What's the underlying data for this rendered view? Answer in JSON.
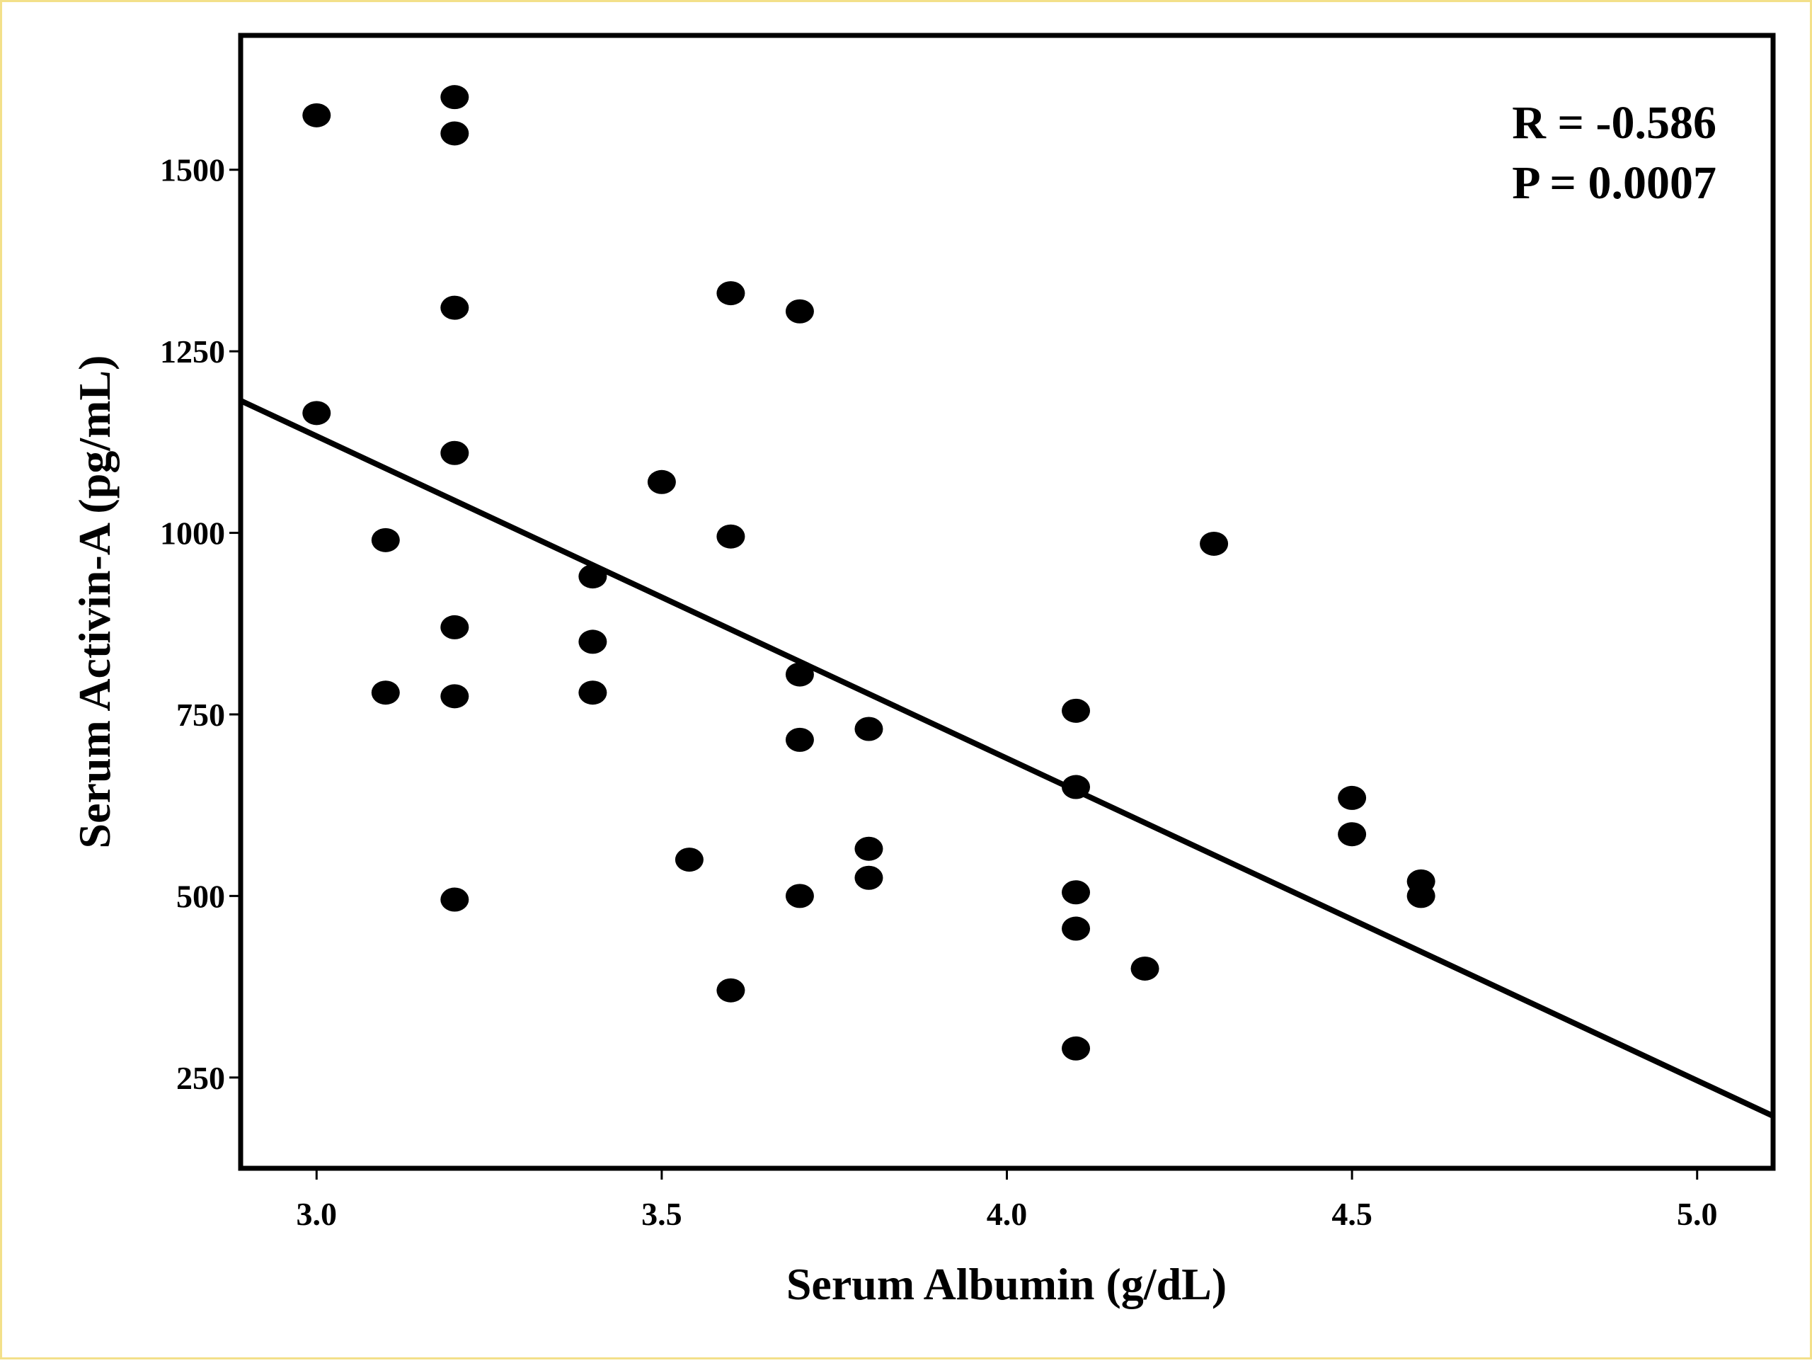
{
  "chart_data": {
    "type": "scatter",
    "title": "",
    "xlabel": "Serum Albumin (g/dL)",
    "ylabel": "Serum Activin-A (pg/mL)",
    "xlim": [
      2.89,
      5.11
    ],
    "ylim": [
      125,
      1685
    ],
    "x_ticks": [
      3.0,
      3.5,
      4.0,
      4.5,
      5.0
    ],
    "x_tick_labels": [
      "3.0",
      "3.5",
      "4.0",
      "4.5",
      "5.0"
    ],
    "y_ticks": [
      250,
      500,
      750,
      1000,
      1250,
      1500
    ],
    "y_tick_labels": [
      "250",
      "500",
      "750",
      "1000",
      "1250",
      "1500"
    ],
    "grid": false,
    "points": [
      {
        "x": 3.0,
        "y": 1575
      },
      {
        "x": 3.0,
        "y": 1165
      },
      {
        "x": 3.1,
        "y": 990
      },
      {
        "x": 3.1,
        "y": 780
      },
      {
        "x": 3.2,
        "y": 1600
      },
      {
        "x": 3.2,
        "y": 1550
      },
      {
        "x": 3.2,
        "y": 1310
      },
      {
        "x": 3.2,
        "y": 1110
      },
      {
        "x": 3.2,
        "y": 870
      },
      {
        "x": 3.2,
        "y": 775
      },
      {
        "x": 3.2,
        "y": 495
      },
      {
        "x": 3.4,
        "y": 940
      },
      {
        "x": 3.4,
        "y": 850
      },
      {
        "x": 3.4,
        "y": 780
      },
      {
        "x": 3.5,
        "y": 1070
      },
      {
        "x": 3.54,
        "y": 550
      },
      {
        "x": 3.6,
        "y": 1330
      },
      {
        "x": 3.6,
        "y": 995
      },
      {
        "x": 3.6,
        "y": 370
      },
      {
        "x": 3.7,
        "y": 1305
      },
      {
        "x": 3.7,
        "y": 805
      },
      {
        "x": 3.7,
        "y": 715
      },
      {
        "x": 3.7,
        "y": 500
      },
      {
        "x": 3.8,
        "y": 730
      },
      {
        "x": 3.8,
        "y": 565
      },
      {
        "x": 3.8,
        "y": 525
      },
      {
        "x": 4.1,
        "y": 755
      },
      {
        "x": 4.1,
        "y": 650
      },
      {
        "x": 4.1,
        "y": 505
      },
      {
        "x": 4.1,
        "y": 455
      },
      {
        "x": 4.1,
        "y": 290
      },
      {
        "x": 4.2,
        "y": 400
      },
      {
        "x": 4.3,
        "y": 985
      },
      {
        "x": 4.5,
        "y": 635
      },
      {
        "x": 4.5,
        "y": 585
      },
      {
        "x": 4.6,
        "y": 520
      },
      {
        "x": 4.6,
        "y": 500
      }
    ],
    "regression_line": {
      "x": [
        2.89,
        5.11
      ],
      "y": [
        1182,
        197
      ]
    },
    "annotations": [
      "R = -0.586",
      "P = 0.0007"
    ],
    "colors": {
      "points": "#000000",
      "line": "#000000",
      "frame": "#000000",
      "background": "#ffffff",
      "border": "#f3e08a"
    }
  }
}
